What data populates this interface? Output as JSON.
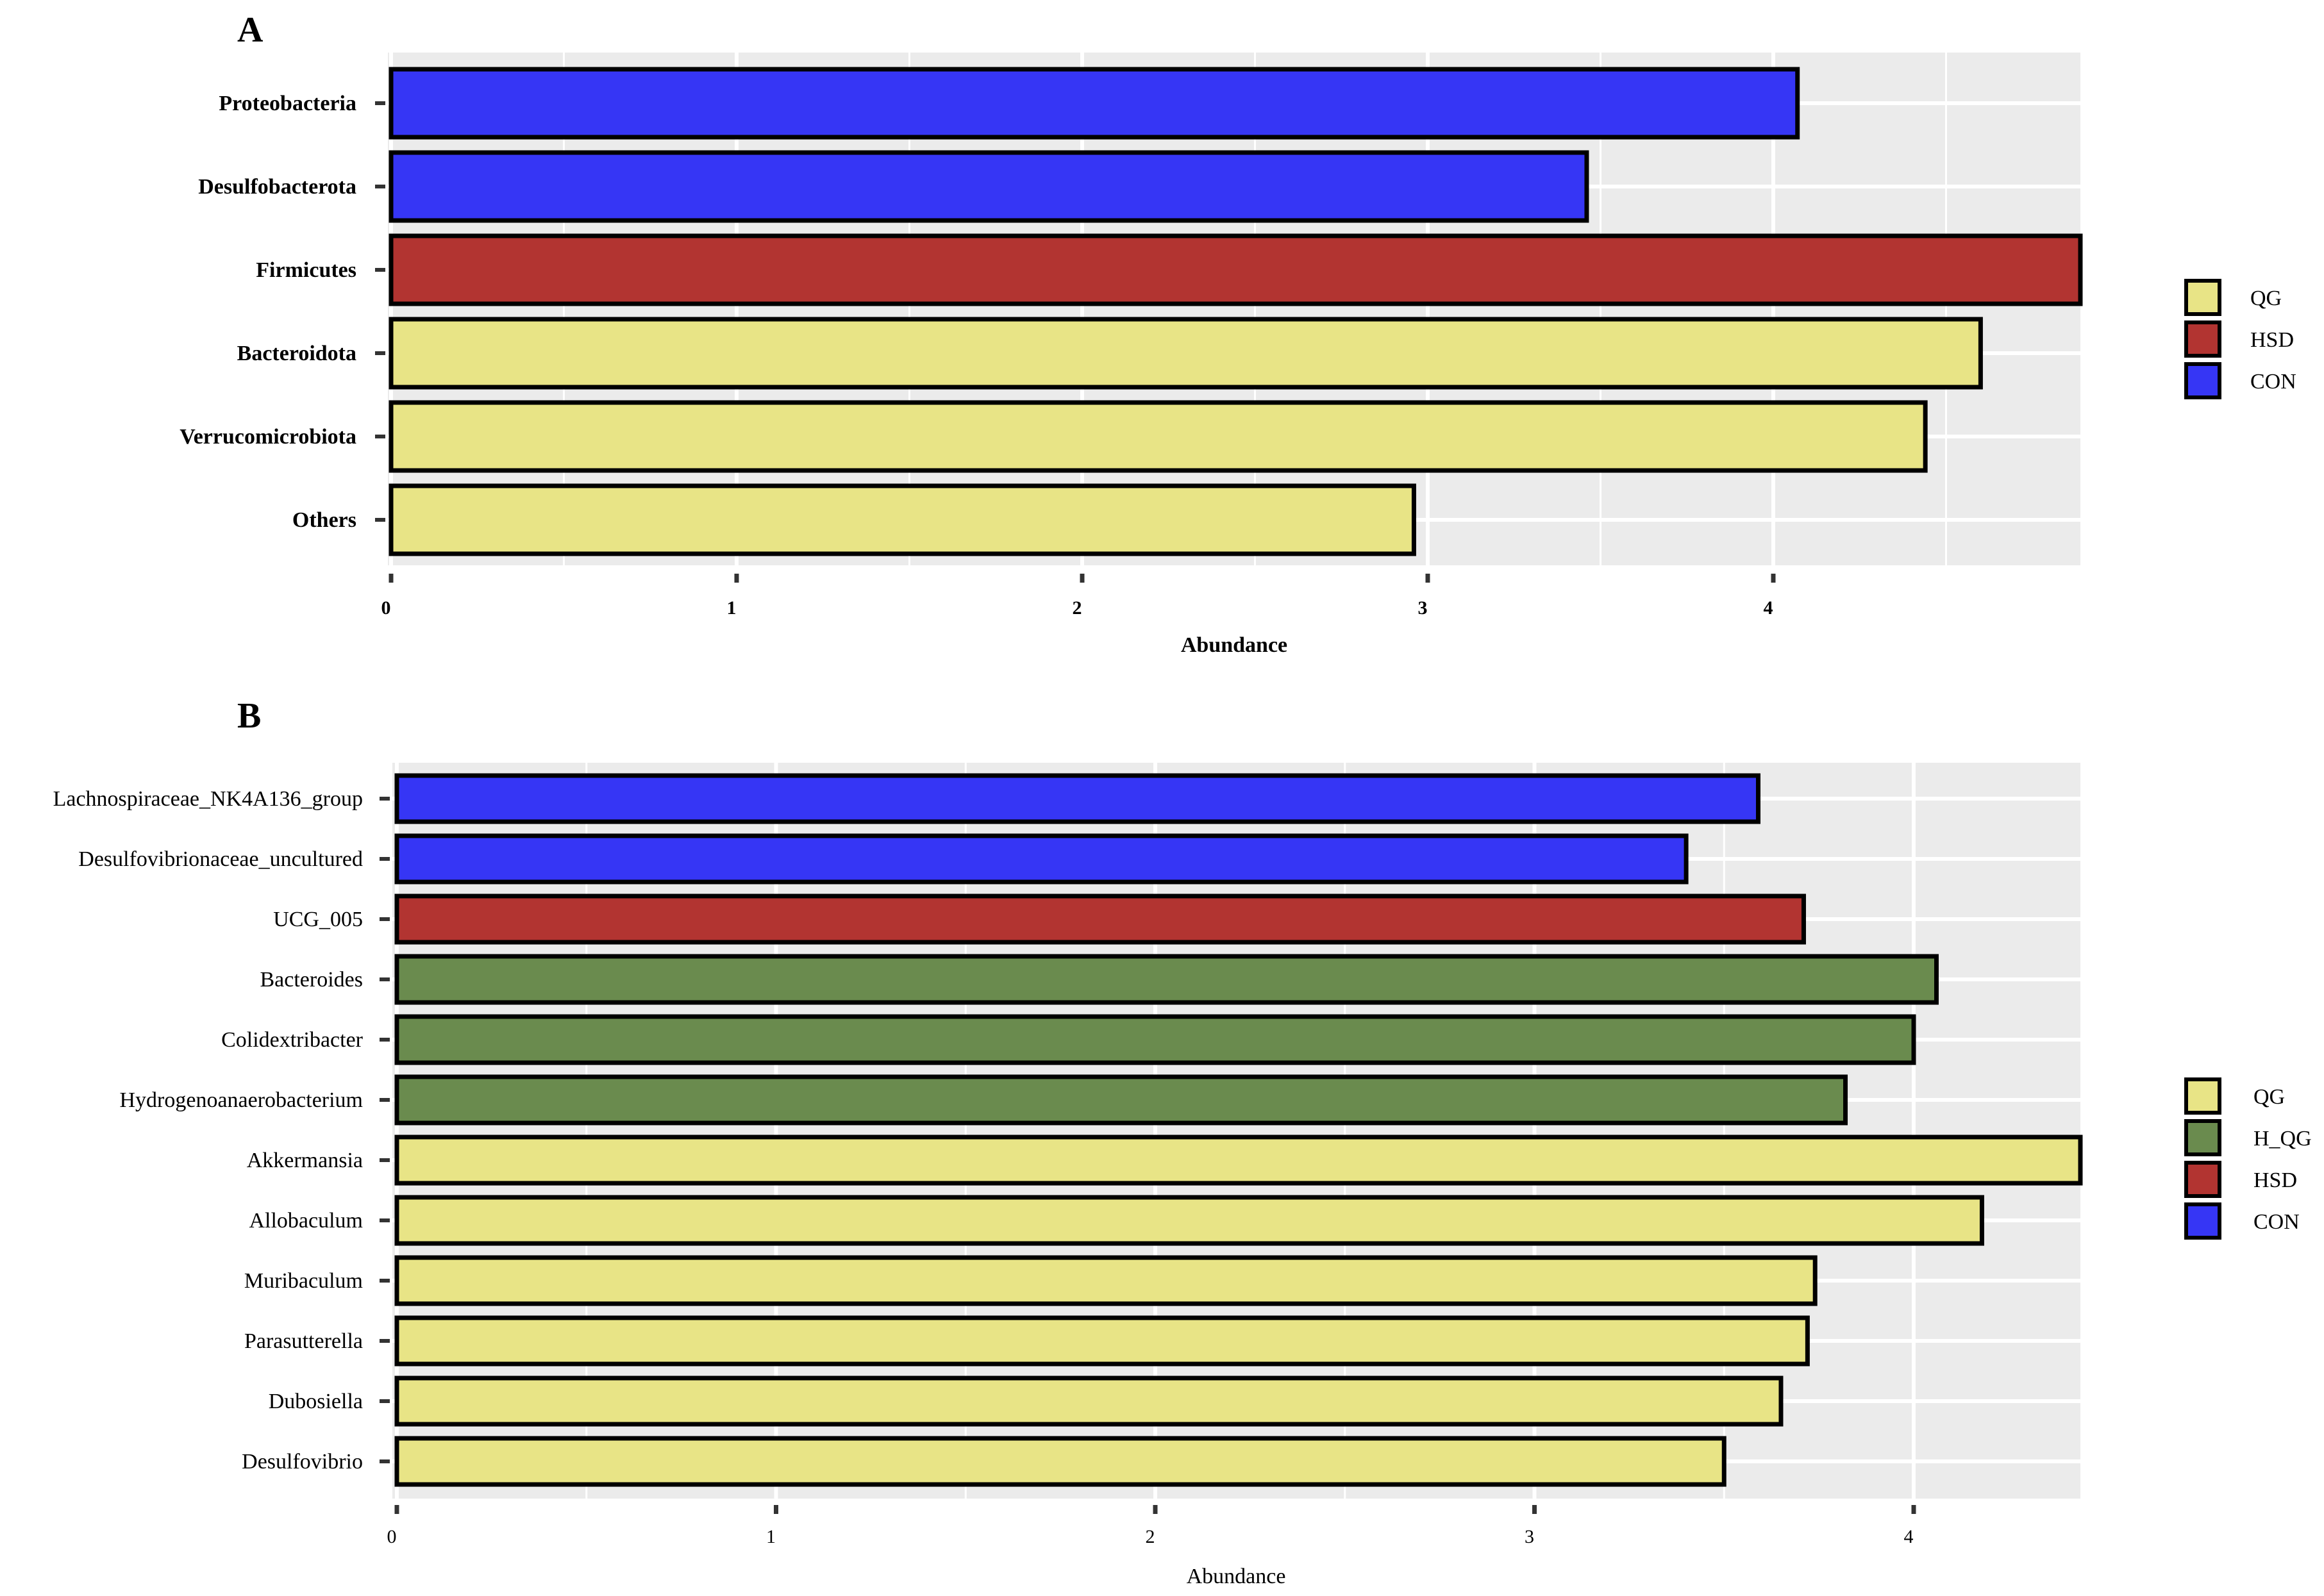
{
  "colors": {
    "CON": "#3636f5",
    "HSD": "#b23431",
    "H_QG": "#6a8b4e",
    "QG": "#e8e486",
    "panel_bg": "#ebebeb",
    "grid": "#ffffff"
  },
  "chart_data": [
    {
      "type": "bar",
      "orientation": "horizontal",
      "panel_label": "A",
      "xlabel": "Abundance",
      "xlim": [
        0,
        4.9
      ],
      "xticks": [
        0,
        1,
        2,
        3,
        4
      ],
      "grid": true,
      "legend_position": "right",
      "legend": [
        "QG",
        "HSD",
        "CON"
      ],
      "categories": [
        "Proteobacteria",
        "Desulfobacterota",
        "Firmicutes",
        "Bacteroidota",
        "Verrucomicrobiota",
        "Others"
      ],
      "values": [
        4.07,
        3.46,
        4.9,
        4.6,
        4.44,
        2.96
      ],
      "groups": [
        "CON",
        "CON",
        "HSD",
        "QG",
        "QG",
        "QG"
      ]
    },
    {
      "type": "bar",
      "orientation": "horizontal",
      "panel_label": "B",
      "xlabel": "Abundance",
      "xlim": [
        0,
        4.45
      ],
      "xticks": [
        0,
        1,
        2,
        3,
        4
      ],
      "grid": true,
      "legend_position": "right",
      "legend": [
        "QG",
        "H_QG",
        "HSD",
        "CON"
      ],
      "categories": [
        "Lachnospiraceae_NK4A136_group",
        "Desulfovibrionaceae_uncultured",
        "UCG_005",
        "Bacteroides",
        "Colidextribacter",
        "Hydrogenoanaerobacterium",
        "Akkermansia",
        "Allobaculum",
        "Muribaculum",
        "Parasutterella",
        "Dubosiella",
        "Desulfovibrio"
      ],
      "values": [
        3.59,
        3.4,
        3.71,
        4.06,
        4.0,
        3.82,
        4.45,
        4.18,
        3.74,
        3.72,
        3.65,
        3.5
      ],
      "groups": [
        "CON",
        "CON",
        "HSD",
        "H_QG",
        "H_QG",
        "H_QG",
        "QG",
        "QG",
        "QG",
        "QG",
        "QG",
        "QG"
      ]
    }
  ]
}
